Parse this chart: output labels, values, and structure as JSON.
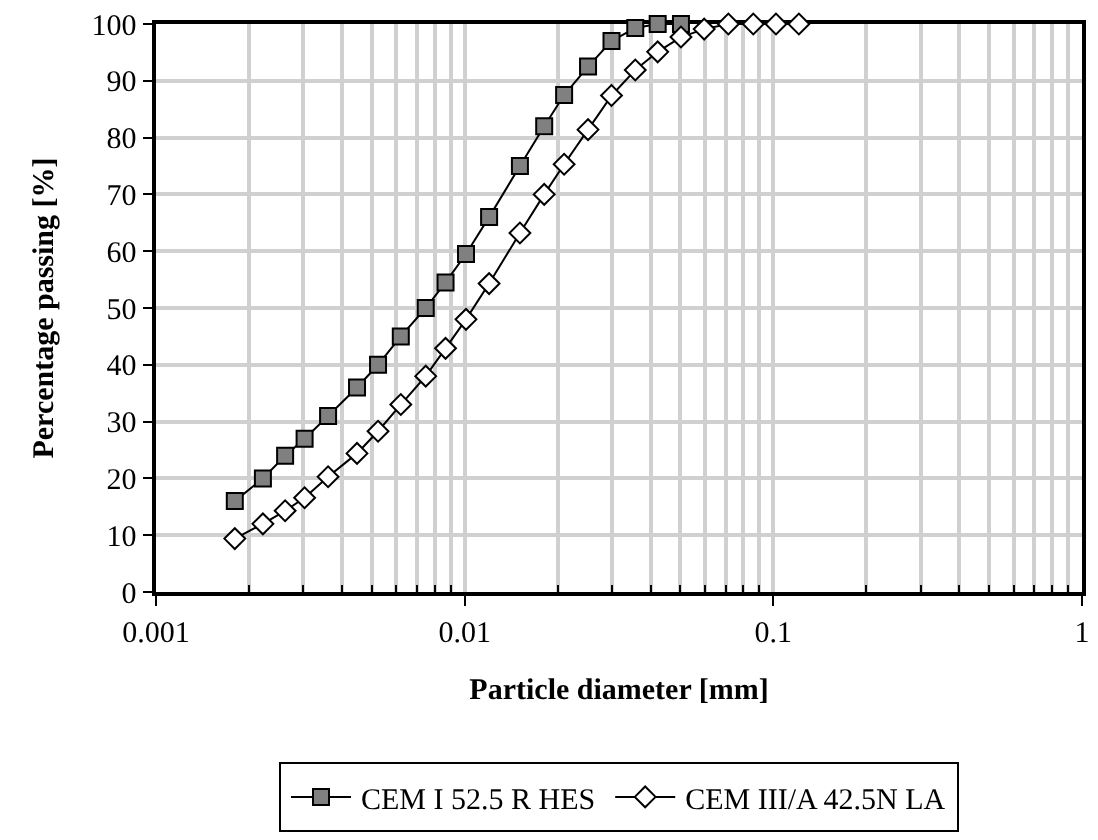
{
  "chart_data": {
    "type": "line",
    "xlabel": "Particle diameter [mm]",
    "ylabel": "Percentage passing [%]",
    "log": "x",
    "xlim": [
      0.001,
      1
    ],
    "xticks": [
      0.001,
      0.01,
      0.1,
      1
    ],
    "ylim": [
      0,
      100
    ],
    "yticks": [
      0,
      10,
      20,
      30,
      40,
      50,
      60,
      70,
      80,
      90,
      100
    ],
    "grid": true,
    "legend": "bottom",
    "line_style": "solid",
    "series": [
      {
        "name": "CEM I 52.5 R HES",
        "color": "#808080",
        "marker": "square",
        "x": [
          0.0018,
          0.00222,
          0.00262,
          0.00303,
          0.00361,
          0.00448,
          0.00524,
          0.00621,
          0.00748,
          0.00867,
          0.0101,
          0.012,
          0.0151,
          0.0181,
          0.021,
          0.0251,
          0.0299,
          0.0357,
          0.0422,
          0.0502
        ],
        "values": [
          16,
          20,
          24,
          27,
          31,
          36,
          40,
          45,
          50,
          54.5,
          59.5,
          66,
          75,
          82,
          87.5,
          92.5,
          97,
          99.3,
          100,
          100
        ]
      },
      {
        "name": "CEM III/A 42.5N LA",
        "color": "#ffffff",
        "marker": "diamond",
        "x": [
          0.0018,
          0.00222,
          0.00262,
          0.00303,
          0.00361,
          0.00448,
          0.00524,
          0.00621,
          0.00748,
          0.00867,
          0.0101,
          0.012,
          0.0151,
          0.0181,
          0.021,
          0.0251,
          0.0299,
          0.0357,
          0.0422,
          0.0502,
          0.0597,
          0.0715,
          0.0861,
          0.102,
          0.121
        ],
        "values": [
          9.4,
          12,
          14.3,
          16.6,
          20.3,
          24.4,
          28.3,
          33,
          38,
          42.9,
          48,
          54.3,
          63.2,
          70,
          75.3,
          81.4,
          87.4,
          91.9,
          95.1,
          97.7,
          99.1,
          100,
          100,
          100,
          100
        ]
      }
    ]
  }
}
